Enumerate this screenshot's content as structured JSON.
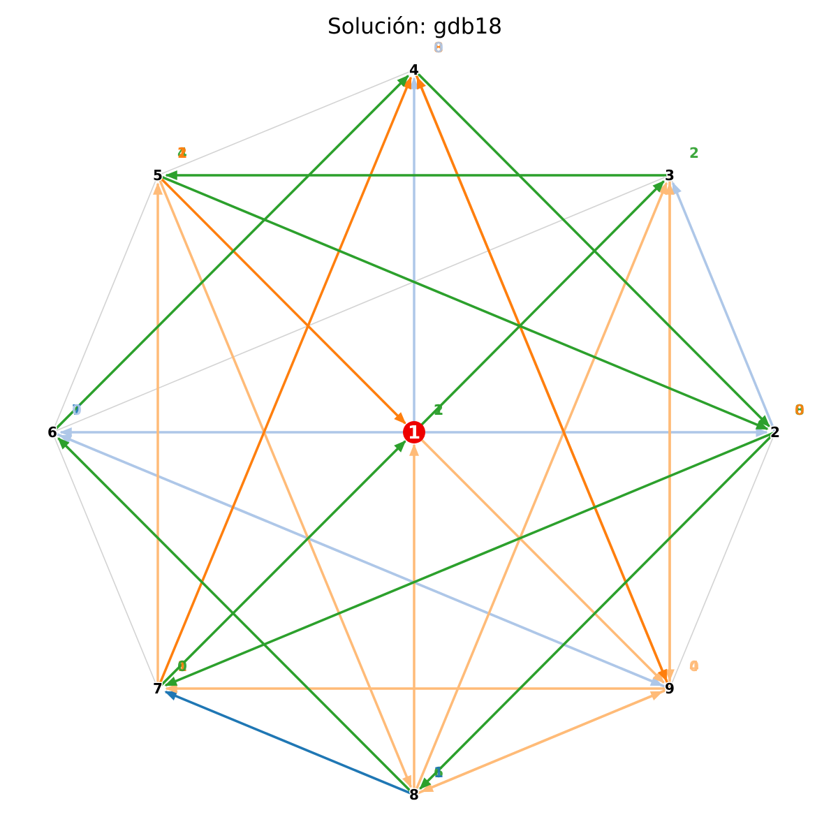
{
  "title": "Solución: gdb18",
  "colors": {
    "background": "#ffffff",
    "base_edge": "#d3d3d3",
    "depot": "#ee0000"
  },
  "nodes": [
    {
      "id": "1",
      "label": "1",
      "depot": true
    },
    {
      "id": "2",
      "label": "2"
    },
    {
      "id": "3",
      "label": "3"
    },
    {
      "id": "4",
      "label": "4"
    },
    {
      "id": "5",
      "label": "5"
    },
    {
      "id": "6",
      "label": "6"
    },
    {
      "id": "7",
      "label": "7"
    },
    {
      "id": "8",
      "label": "8"
    },
    {
      "id": "9",
      "label": "9"
    }
  ],
  "base_edges": [
    [
      "2",
      "3"
    ],
    [
      "3",
      "6"
    ],
    [
      "4",
      "5"
    ],
    [
      "5",
      "6"
    ],
    [
      "6",
      "7"
    ],
    [
      "9",
      "2"
    ]
  ],
  "routes": [
    {
      "color": "#aec7e8",
      "edges": [
        [
          "1",
          "4"
        ],
        [
          "1",
          "2"
        ],
        [
          "2",
          "3"
        ],
        [
          "1",
          "6"
        ],
        [
          "6",
          "9"
        ],
        [
          "9",
          "6"
        ]
      ]
    },
    {
      "color": "#1f77b4",
      "edges": [
        [
          "8",
          "7"
        ]
      ]
    },
    {
      "color": "#ffbb78",
      "edges": [
        [
          "5",
          "8"
        ],
        [
          "7",
          "5"
        ],
        [
          "9",
          "3"
        ],
        [
          "3",
          "9"
        ],
        [
          "1",
          "9"
        ],
        [
          "8",
          "1"
        ],
        [
          "9",
          "7"
        ],
        [
          "8",
          "9"
        ],
        [
          "9",
          "8"
        ],
        [
          "8",
          "3"
        ]
      ]
    },
    {
      "color": "#ff7f0e",
      "edges": [
        [
          "5",
          "1"
        ],
        [
          "7",
          "4"
        ],
        [
          "4",
          "9"
        ],
        [
          "9",
          "4"
        ]
      ]
    },
    {
      "color": "#2ca02c",
      "edges": [
        [
          "4",
          "2"
        ],
        [
          "6",
          "4"
        ],
        [
          "3",
          "5"
        ],
        [
          "5",
          "2"
        ],
        [
          "1",
          "3"
        ],
        [
          "2",
          "7"
        ],
        [
          "7",
          "1"
        ],
        [
          "2",
          "8"
        ],
        [
          "8",
          "6"
        ]
      ]
    }
  ],
  "node_text_labels": [
    {
      "node": "4",
      "entries": [
        {
          "text": "8",
          "color": "#ff7f0e"
        },
        {
          "text": "0",
          "color": "#aec7e8"
        }
      ]
    },
    {
      "node": "5",
      "entries": [
        {
          "text": "4",
          "color": "#2ca02c"
        },
        {
          "text": "1",
          "color": "#ff7f0e"
        },
        {
          "text": "2",
          "color": "#ff7f0e"
        }
      ]
    },
    {
      "node": "3",
      "entries": [
        {
          "text": "2",
          "color": "#2ca02c"
        }
      ]
    },
    {
      "node": "6",
      "entries": [
        {
          "text": "7",
          "color": "#1f77b4"
        },
        {
          "text": "0",
          "color": "#aec7e8"
        }
      ]
    },
    {
      "node": "1",
      "entries": [
        {
          "text": "1",
          "color": "#2ca02c"
        },
        {
          "text": "2",
          "color": "#2ca02c"
        }
      ]
    },
    {
      "node": "2",
      "entries": [
        {
          "text": "8",
          "color": "#2ca02c"
        },
        {
          "text": "0",
          "color": "#ff7f0e"
        }
      ]
    },
    {
      "node": "7",
      "entries": [
        {
          "text": "1",
          "color": "#ff7f0e"
        },
        {
          "text": "0",
          "color": "#2ca02c"
        }
      ]
    },
    {
      "node": "9",
      "entries": [
        {
          "text": "4",
          "color": "#ffbb78"
        },
        {
          "text": "0",
          "color": "#ffbb78"
        }
      ]
    },
    {
      "node": "8",
      "entries": [
        {
          "text": "6",
          "color": "#2ca02c"
        },
        {
          "text": "1",
          "color": "#1f77b4"
        }
      ]
    }
  ]
}
